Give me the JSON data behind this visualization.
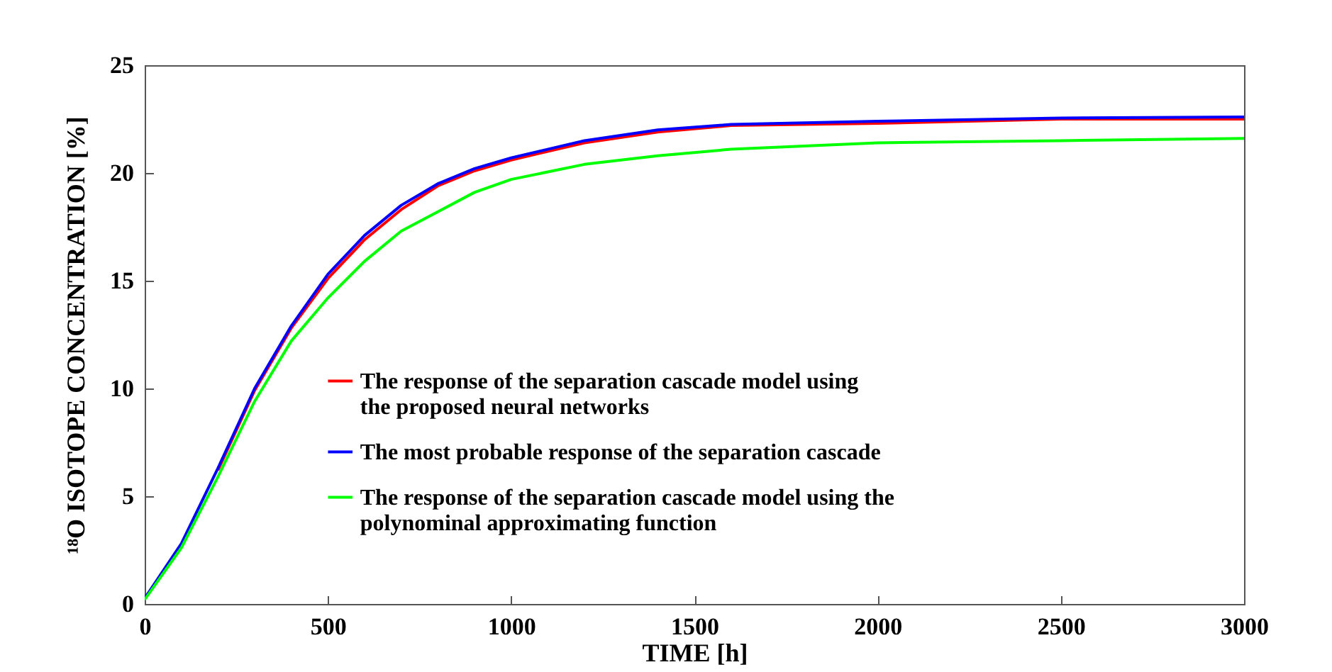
{
  "chart_data": {
    "type": "line",
    "xlabel": "TIME [h]",
    "ylabel": "¹⁸O ISOTOPE CONCENTRATION [%]",
    "x": [
      0,
      100,
      200,
      300,
      400,
      500,
      600,
      700,
      800,
      900,
      1000,
      1200,
      1400,
      1600,
      2000,
      2500,
      3000
    ],
    "series": [
      {
        "name": "The  response of the separation cascade model using the proposed neural networks",
        "color": "#ff0000",
        "values": [
          null,
          null,
          6.2,
          9.9,
          12.8,
          15.1,
          16.9,
          18.3,
          19.4,
          20.1,
          20.6,
          21.4,
          21.9,
          22.2,
          22.3,
          22.5,
          22.5
        ]
      },
      {
        "name": "The most probable response of the separation cascade",
        "color": "#0000ff",
        "values": [
          0.26,
          2.8,
          6.3,
          10.0,
          12.9,
          15.3,
          17.1,
          18.5,
          19.5,
          20.2,
          20.7,
          21.5,
          22.0,
          22.25,
          22.4,
          22.55,
          22.6
        ]
      },
      {
        "name": "The response of the separation cascade model using the polynominal approximating function",
        "color": "#00ff00",
        "values": [
          0.2,
          2.6,
          5.9,
          9.4,
          12.2,
          14.2,
          15.9,
          17.3,
          18.2,
          19.1,
          19.7,
          20.4,
          20.8,
          21.1,
          21.4,
          21.5,
          21.6
        ]
      }
    ],
    "xlim": [
      0,
      3000
    ],
    "xticks": [
      0,
      500,
      1000,
      1500,
      2000,
      2500,
      3000
    ],
    "ylim": [
      0,
      25
    ],
    "yticks": [
      0,
      5,
      10,
      15,
      20,
      25
    ],
    "legend": "bottom",
    "grid": false,
    "line_style": "solid"
  }
}
